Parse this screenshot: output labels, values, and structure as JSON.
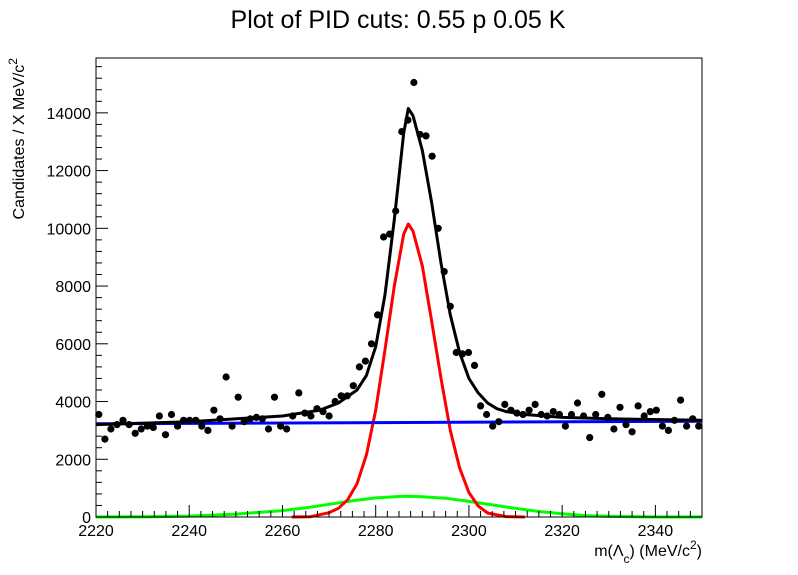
{
  "chart_data": {
    "type": "scatter",
    "title": "Plot of PID cuts: 0.55 p 0.05 K",
    "xlabel": "m(Λc) (MeV/c2)",
    "xlabel_parts": {
      "prefix": "m(Λ",
      "sub": "c",
      "mid": ") (MeV/c",
      "sup": "2",
      "suffix": ")"
    },
    "ylabel": "Candidates / X MeV/c2",
    "ylabel_parts": {
      "main": "Candidates / X MeV/c",
      "sup": "2"
    },
    "xlim": [
      2220,
      2350
    ],
    "ylim": [
      0,
      15900
    ],
    "x_ticks": [
      2220,
      2240,
      2260,
      2280,
      2300,
      2320,
      2340
    ],
    "x_tick_labels": [
      "2220",
      "2240",
      "2260",
      "2280",
      "2300",
      "2320",
      "2340"
    ],
    "y_ticks": [
      0,
      2000,
      4000,
      6000,
      8000,
      10000,
      12000,
      14000
    ],
    "y_tick_labels": [
      "0",
      "2000",
      "4000",
      "6000",
      "8000",
      "10000",
      "12000",
      "14000"
    ],
    "grid": false,
    "colors": {
      "data": "#000000",
      "total": "#000000",
      "signal": "#ff0000",
      "background": "#0000ff",
      "wide": "#00ff00"
    },
    "points": {
      "x": [
        2220.6,
        2221.9,
        2223.2,
        2224.5,
        2225.8,
        2227.1,
        2228.4,
        2229.7,
        2231.0,
        2232.3,
        2233.6,
        2234.9,
        2236.2,
        2237.5,
        2238.8,
        2240.1,
        2241.4,
        2242.7,
        2244.0,
        2245.3,
        2246.6,
        2247.9,
        2249.2,
        2250.5,
        2251.8,
        2253.1,
        2254.4,
        2255.7,
        2257.0,
        2258.3,
        2259.6,
        2260.9,
        2262.2,
        2263.5,
        2264.8,
        2266.1,
        2267.4,
        2268.7,
        2270.0,
        2271.3,
        2272.6,
        2273.9,
        2275.2,
        2276.5,
        2277.8,
        2279.1,
        2280.4,
        2281.7,
        2283.0,
        2284.3,
        2285.6,
        2286.9,
        2288.2,
        2289.5,
        2290.8,
        2292.1,
        2293.4,
        2294.7,
        2296.0,
        2297.3,
        2298.6,
        2299.9,
        2301.2,
        2302.5,
        2303.8,
        2305.1,
        2306.4,
        2307.7,
        2309.0,
        2310.3,
        2311.6,
        2312.9,
        2314.2,
        2315.5,
        2316.8,
        2318.1,
        2319.4,
        2320.7,
        2322.0,
        2323.3,
        2324.6,
        2325.9,
        2327.2,
        2328.5,
        2329.8,
        2331.1,
        2332.4,
        2333.7,
        2335.0,
        2336.3,
        2337.6,
        2338.9,
        2340.2,
        2341.5,
        2342.8,
        2344.1,
        2345.4,
        2346.7,
        2348.0,
        2349.3
      ],
      "y": [
        3550,
        2700,
        3050,
        3200,
        3350,
        3200,
        2900,
        3050,
        3150,
        3100,
        3500,
        2850,
        3550,
        3150,
        3350,
        3350,
        3350,
        3150,
        3000,
        3700,
        3400,
        4850,
        3150,
        4150,
        3300,
        3400,
        3450,
        3400,
        3050,
        4150,
        3150,
        3050,
        3500,
        4300,
        3600,
        3500,
        3750,
        3650,
        3500,
        4000,
        4200,
        4200,
        4550,
        5200,
        5400,
        6000,
        7000,
        9700,
        9800,
        10600,
        13350,
        13750,
        15050,
        13250,
        13200,
        12500,
        10000,
        8500,
        7300,
        5700,
        5650,
        5700,
        5250,
        3850,
        3550,
        3150,
        3300,
        3900,
        3700,
        3600,
        3550,
        3700,
        3900,
        3550,
        3500,
        3650,
        3550,
        3150,
        3550,
        3950,
        3500,
        2750,
        3550,
        4250,
        3450,
        3050,
        3800,
        3200,
        2950,
        3850,
        3500,
        3650,
        3700,
        3150,
        3000,
        3350,
        4050,
        3150,
        3400,
        3150
      ]
    },
    "fit_total": {
      "x": [
        2220,
        2240,
        2260,
        2268,
        2272,
        2276,
        2278,
        2280,
        2282,
        2284,
        2286,
        2287,
        2288,
        2290,
        2292,
        2294,
        2296,
        2298,
        2300,
        2302,
        2304,
        2306,
        2308,
        2312,
        2320,
        2330,
        2350
      ],
      "y": [
        3200,
        3300,
        3500,
        3700,
        3950,
        4400,
        4900,
        5900,
        7700,
        10300,
        13300,
        14150,
        13900,
        12700,
        10900,
        8800,
        7000,
        5700,
        4800,
        4300,
        3950,
        3750,
        3650,
        3550,
        3450,
        3400,
        3350
      ]
    },
    "fit_signal": {
      "x": [
        2262,
        2266,
        2270,
        2272,
        2274,
        2276,
        2278,
        2280,
        2282,
        2284,
        2286,
        2287,
        2288,
        2290,
        2292,
        2294,
        2296,
        2298,
        2300,
        2302,
        2304,
        2308,
        2312
      ],
      "y": [
        0,
        10,
        150,
        300,
        600,
        1150,
        2150,
        3700,
        5800,
        8000,
        9800,
        10150,
        9900,
        8700,
        6800,
        4800,
        3000,
        1700,
        850,
        380,
        140,
        15,
        0
      ]
    },
    "fit_background": {
      "x": [
        2220,
        2350
      ],
      "y": [
        3230,
        3320
      ]
    },
    "fit_wide": {
      "x": [
        2220,
        2230,
        2240,
        2250,
        2260,
        2265,
        2270,
        2275,
        2280,
        2285,
        2287,
        2290,
        2295,
        2300,
        2305,
        2310,
        2315,
        2320,
        2325,
        2330,
        2340,
        2350
      ],
      "y": [
        0,
        5,
        30,
        100,
        220,
        320,
        440,
        560,
        660,
        710,
        720,
        700,
        650,
        540,
        420,
        300,
        190,
        110,
        50,
        20,
        0,
        0
      ]
    }
  }
}
